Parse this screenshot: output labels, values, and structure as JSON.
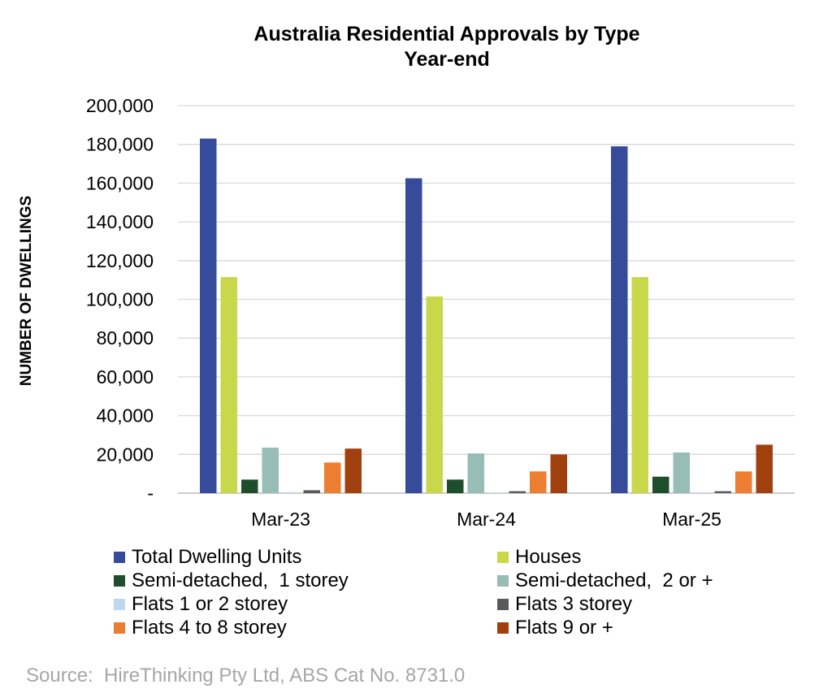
{
  "chart_data": {
    "type": "bar",
    "title": "Australia Residential Approvals by Type",
    "subtitle": "Year-end",
    "ylabel": "NUMBER OF DWELLINGS",
    "xlabel": "",
    "ylim": [
      0,
      200000
    ],
    "yticks": [
      0,
      20000,
      40000,
      60000,
      80000,
      100000,
      120000,
      140000,
      160000,
      180000,
      200000
    ],
    "ytick_labels": [
      "-",
      "20,000",
      "40,000",
      "60,000",
      "80,000",
      "100,000",
      "120,000",
      "140,000",
      "160,000",
      "180,000",
      "200,000"
    ],
    "grid": true,
    "legend_position": "bottom",
    "categories": [
      "Mar-23",
      "Mar-24",
      "Mar-25"
    ],
    "series": [
      {
        "name": "Total Dwelling Units",
        "color": "#364c9a",
        "values": [
          183000,
          162500,
          179000
        ]
      },
      {
        "name": "Houses",
        "color": "#c9d84a",
        "values": [
          111500,
          101500,
          111500
        ]
      },
      {
        "name": "Semi-detached,  1 storey",
        "color": "#1f4e2c",
        "values": [
          7000,
          7000,
          8500
        ]
      },
      {
        "name": "Semi-detached,  2 or +",
        "color": "#98bcb6",
        "values": [
          23500,
          20500,
          21000
        ]
      },
      {
        "name": "Flats 1 or 2 storey",
        "color": "#bdd7ee",
        "values": [
          500,
          300,
          300
        ]
      },
      {
        "name": "Flats 3 storey",
        "color": "#5a5a5a",
        "values": [
          1500,
          1000,
          1000
        ]
      },
      {
        "name": "Flats 4 to 8 storey",
        "color": "#ed7d31",
        "values": [
          15800,
          11200,
          11200
        ]
      },
      {
        "name": "Flats 9 or +",
        "color": "#a0400f",
        "values": [
          23000,
          20000,
          25000
        ]
      }
    ]
  },
  "source": "Source:  HireThinking Pty Ltd, ABS Cat No. 8731.0"
}
